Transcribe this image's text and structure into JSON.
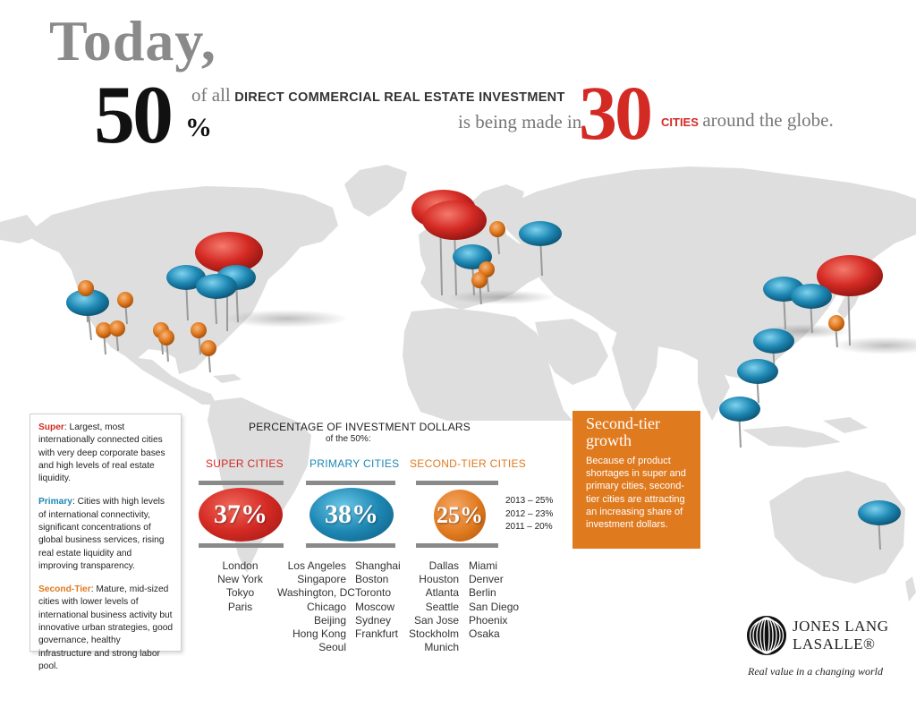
{
  "headline": {
    "today": "Today,",
    "fifty": "50",
    "percent_sign": "%",
    "of_all": "of all",
    "investment_caps": "DIRECT COMMERCIAL REAL ESTATE INVESTMENT",
    "being_made": "is being made in",
    "thirty": "30",
    "cities_caps": "CITIES",
    "around_globe": "around the globe."
  },
  "legend": {
    "super_term": "Super",
    "super_text": ": Largest, most internationally connected cities with very deep corporate bases and high levels of real estate liquidity.",
    "primary_term": "Primary",
    "primary_text": ": Cities with high levels of international connectivity, significant concentrations of global business services, rising real estate liquidity and improving transparency.",
    "second_term": "Second-Tier",
    "second_text": ": Mature, mid-sized cities with lower levels of international business activity but innovative urban strategies, good governance, healthy infrastructure and strong labor pool."
  },
  "investment": {
    "title": "PERCENTAGE OF INVESTMENT DOLLARS",
    "subtitle": "of the 50%:",
    "categories": [
      {
        "label": "SUPER CITIES",
        "value": "37%",
        "color": "#d42a24"
      },
      {
        "label": "PRIMARY CITIES",
        "value": "38%",
        "color": "#1e88b4"
      },
      {
        "label": "SECOND-TIER CITIES",
        "value": "25%",
        "color": "#e07a1f"
      }
    ],
    "trend": [
      "2013 – 25%",
      "2012 – 23%",
      "2011 – 20%"
    ]
  },
  "cities": {
    "super": [
      "London",
      "New York",
      "Tokyo",
      "Paris"
    ],
    "primary_col1": [
      "Los Angeles",
      "Singapore",
      "Washington, DC",
      "Chicago",
      "Beijing",
      "Hong Kong",
      "Seoul"
    ],
    "primary_col2": [
      "Shanghai",
      "Boston",
      "Toronto",
      "Moscow",
      "Sydney",
      "Frankfurt"
    ],
    "second_col1": [
      "Dallas",
      "Houston",
      "Atlanta",
      "Seattle",
      "San Jose",
      "Stockholm",
      "Munich"
    ],
    "second_col2": [
      "Miami",
      "Denver",
      "Berlin",
      "San Diego",
      "Phoenix",
      "Osaka"
    ]
  },
  "second_tier_box": {
    "title": "Second-tier growth",
    "body": "Because of product shortages in super and primary cities, second-tier cities are attracting an increasing share of investment dollars."
  },
  "logo": {
    "line1": "JONES LANG",
    "line2": "LASALLE®",
    "tagline": "Real value in a changing world"
  },
  "colors": {
    "super": "#d42a24",
    "primary": "#1e88b4",
    "second_tier": "#e07a1f",
    "map": "#dcdcdc"
  }
}
